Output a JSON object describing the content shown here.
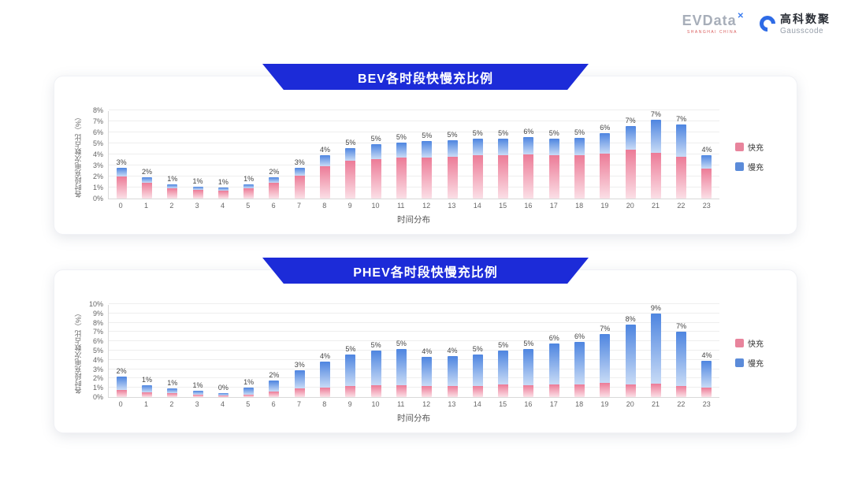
{
  "header": {
    "evdata_text": "EVData",
    "evdata_mark": "✕",
    "evdata_sub": "SHANGHAI CHINA",
    "gausscode_cn": "高科数聚",
    "gausscode_en": "Gausscode"
  },
  "colors": {
    "banner_blue": "#1c2bd8",
    "fast_pink": "#e8849c",
    "slow_blue": "#5b8bd9",
    "gridline": "#eeeeee",
    "axis_line": "#d9d9d9"
  },
  "chart_data": [
    {
      "type": "bar",
      "stacked": true,
      "title": "BEV各时段快慢充比例",
      "xlabel": "时间分布",
      "ylabel": "各时段充电次数占比（%）",
      "ylim": [
        0,
        8
      ],
      "ytick_step": 1,
      "grid": true,
      "legend_position": "right",
      "categories": [
        0,
        1,
        2,
        3,
        4,
        5,
        6,
        7,
        8,
        9,
        10,
        11,
        12,
        13,
        14,
        15,
        16,
        17,
        18,
        19,
        20,
        21,
        22,
        23
      ],
      "bar_labels": [
        "3%",
        "2%",
        "1%",
        "1%",
        "1%",
        "1%",
        "2%",
        "3%",
        "4%",
        "5%",
        "5%",
        "5%",
        "5%",
        "5%",
        "5%",
        "5%",
        "6%",
        "5%",
        "5%",
        "6%",
        "7%",
        "7%",
        "7%",
        "4%"
      ],
      "series": [
        {
          "name": "快充",
          "legend_color": "#e8849c",
          "gradient": [
            "#ec7b97",
            "#fbdfe6"
          ],
          "values": [
            2.0,
            1.4,
            0.9,
            0.8,
            0.7,
            0.9,
            1.4,
            2.1,
            2.9,
            3.4,
            3.6,
            3.7,
            3.7,
            3.8,
            3.9,
            3.9,
            4.0,
            3.9,
            3.9,
            4.1,
            4.4,
            4.2,
            3.8,
            2.7
          ]
        },
        {
          "name": "慢充",
          "legend_color": "#5b8bd9",
          "gradient": [
            "#4e85e0",
            "#c8dbf6"
          ],
          "values": [
            0.8,
            0.5,
            0.4,
            0.3,
            0.3,
            0.4,
            0.5,
            0.7,
            1.0,
            1.2,
            1.3,
            1.4,
            1.5,
            1.5,
            1.5,
            1.5,
            1.6,
            1.5,
            1.6,
            1.8,
            2.2,
            3.0,
            2.9,
            1.2
          ]
        }
      ]
    },
    {
      "type": "bar",
      "stacked": true,
      "title": "PHEV各时段快慢充比例",
      "xlabel": "时间分布",
      "ylabel": "各时段充电次数占比（%）",
      "ylim": [
        0,
        10
      ],
      "ytick_step": 1,
      "grid": true,
      "legend_position": "right",
      "categories": [
        0,
        1,
        2,
        3,
        4,
        5,
        6,
        7,
        8,
        9,
        10,
        11,
        12,
        13,
        14,
        15,
        16,
        17,
        18,
        19,
        20,
        21,
        22,
        23
      ],
      "bar_labels": [
        "2%",
        "1%",
        "1%",
        "1%",
        "0%",
        "1%",
        "2%",
        "3%",
        "4%",
        "5%",
        "5%",
        "5%",
        "4%",
        "4%",
        "5%",
        "5%",
        "5%",
        "6%",
        "6%",
        "7%",
        "8%",
        "9%",
        "7%",
        "4%"
      ],
      "series": [
        {
          "name": "快充",
          "legend_color": "#e8849c",
          "gradient": [
            "#ec7b97",
            "#fbdfe6"
          ],
          "values": [
            0.8,
            0.5,
            0.4,
            0.3,
            0.2,
            0.3,
            0.6,
            0.9,
            1.0,
            1.2,
            1.3,
            1.3,
            1.2,
            1.2,
            1.2,
            1.4,
            1.3,
            1.4,
            1.4,
            1.5,
            1.4,
            1.5,
            1.2,
            1.0
          ]
        },
        {
          "name": "慢充",
          "legend_color": "#5b8bd9",
          "gradient": [
            "#4e85e0",
            "#c8dbf6"
          ],
          "values": [
            1.4,
            0.8,
            0.5,
            0.4,
            0.2,
            0.7,
            1.2,
            2.0,
            2.8,
            3.4,
            3.7,
            3.9,
            3.1,
            3.2,
            3.4,
            3.6,
            3.9,
            4.4,
            4.5,
            5.3,
            6.4,
            7.6,
            5.8,
            2.9
          ]
        }
      ]
    }
  ]
}
